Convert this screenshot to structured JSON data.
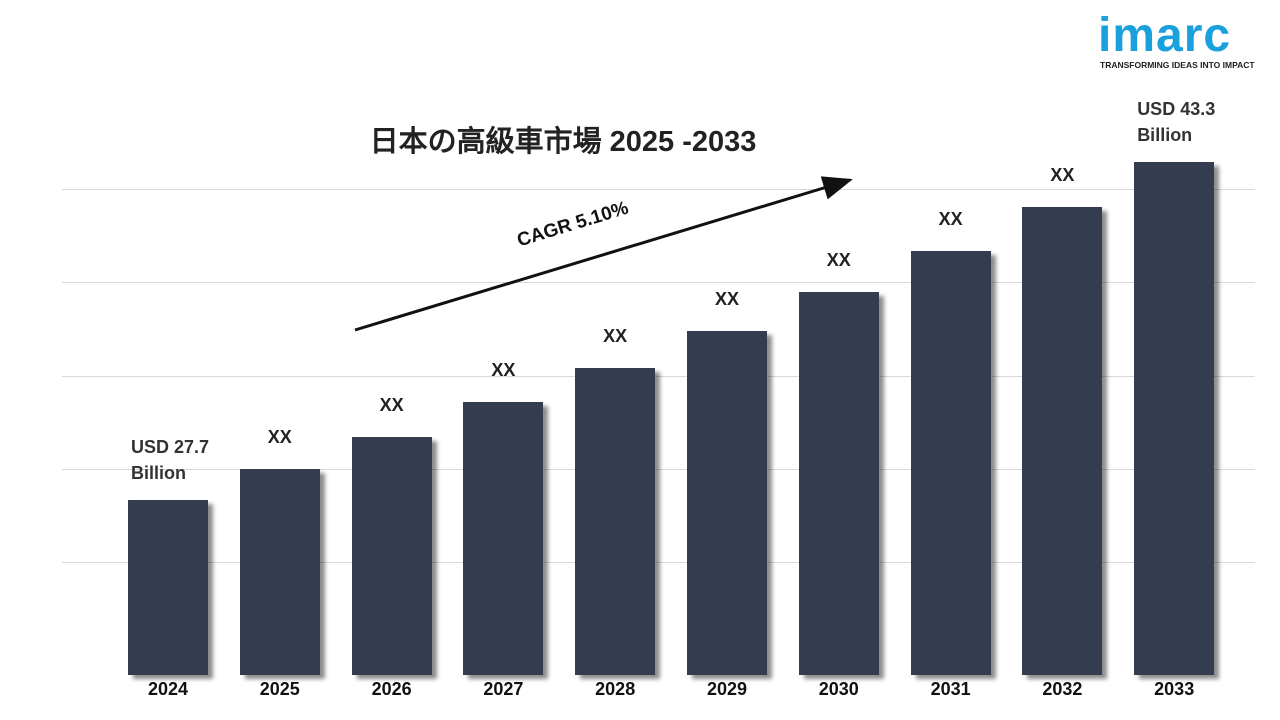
{
  "logo": {
    "name": "imarc",
    "tagline": "TRANSFORMING IDEAS INTO IMPACT"
  },
  "chart_data": {
    "type": "bar",
    "title": "日本の高級車市場 2025 -2033",
    "annotation": "CAGR 5.10%",
    "categories": [
      "2024",
      "2025",
      "2026",
      "2027",
      "2028",
      "2029",
      "2030",
      "2031",
      "2032",
      "2033"
    ],
    "values": [
      27.7,
      29.1,
      30.6,
      32.2,
      33.8,
      35.5,
      37.3,
      39.2,
      41.2,
      43.3
    ],
    "value_labels": [
      "USD 27.7 Billion",
      "XX",
      "XX",
      "XX",
      "XX",
      "XX",
      "XX",
      "XX",
      "XX",
      "USD 43.3 Billion"
    ],
    "color": "#333d4f",
    "ylim": [
      19.6,
      43.3
    ],
    "grid": true
  }
}
